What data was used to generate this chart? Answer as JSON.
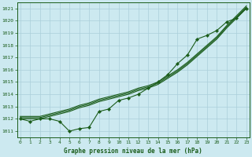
{
  "xlabel": "Graphe pression niveau de la mer (hPa)",
  "background_color": "#cce9f0",
  "grid_color": "#aacfda",
  "line_color": "#1a5c1a",
  "ylim": [
    1010.5,
    1021.5
  ],
  "yticks": [
    1011,
    1012,
    1013,
    1014,
    1015,
    1016,
    1017,
    1018,
    1019,
    1020,
    1021
  ],
  "xlim": [
    -0.3,
    23.3
  ],
  "straight_line1": [
    1012.0,
    1012.0,
    1012.0,
    1012.2,
    1012.4,
    1012.6,
    1012.9,
    1013.1,
    1013.4,
    1013.6,
    1013.8,
    1014.0,
    1014.3,
    1014.5,
    1014.8,
    1015.3,
    1015.8,
    1016.4,
    1017.1,
    1017.8,
    1018.5,
    1019.4,
    1020.2,
    1021.0
  ],
  "straight_line2": [
    1012.1,
    1012.1,
    1012.1,
    1012.3,
    1012.5,
    1012.7,
    1013.0,
    1013.2,
    1013.5,
    1013.7,
    1013.9,
    1014.1,
    1014.4,
    1014.6,
    1014.9,
    1015.4,
    1015.9,
    1016.5,
    1017.2,
    1017.9,
    1018.6,
    1019.5,
    1020.3,
    1021.1
  ],
  "straight_line3": [
    1012.2,
    1012.2,
    1012.2,
    1012.4,
    1012.6,
    1012.8,
    1013.1,
    1013.3,
    1013.6,
    1013.8,
    1014.0,
    1014.2,
    1014.5,
    1014.7,
    1015.0,
    1015.5,
    1016.0,
    1016.6,
    1017.3,
    1018.0,
    1018.7,
    1019.6,
    1020.4,
    1021.2
  ],
  "zigzag_line": [
    1012.0,
    1011.8,
    1012.0,
    1012.0,
    1011.8,
    1011.0,
    1011.2,
    1011.3,
    1012.6,
    1012.8,
    1013.5,
    1013.7,
    1014.0,
    1014.5,
    1015.0,
    1015.6,
    1016.5,
    1017.2,
    1018.5,
    1018.8,
    1019.2,
    1019.9,
    1020.2,
    1021.0
  ]
}
